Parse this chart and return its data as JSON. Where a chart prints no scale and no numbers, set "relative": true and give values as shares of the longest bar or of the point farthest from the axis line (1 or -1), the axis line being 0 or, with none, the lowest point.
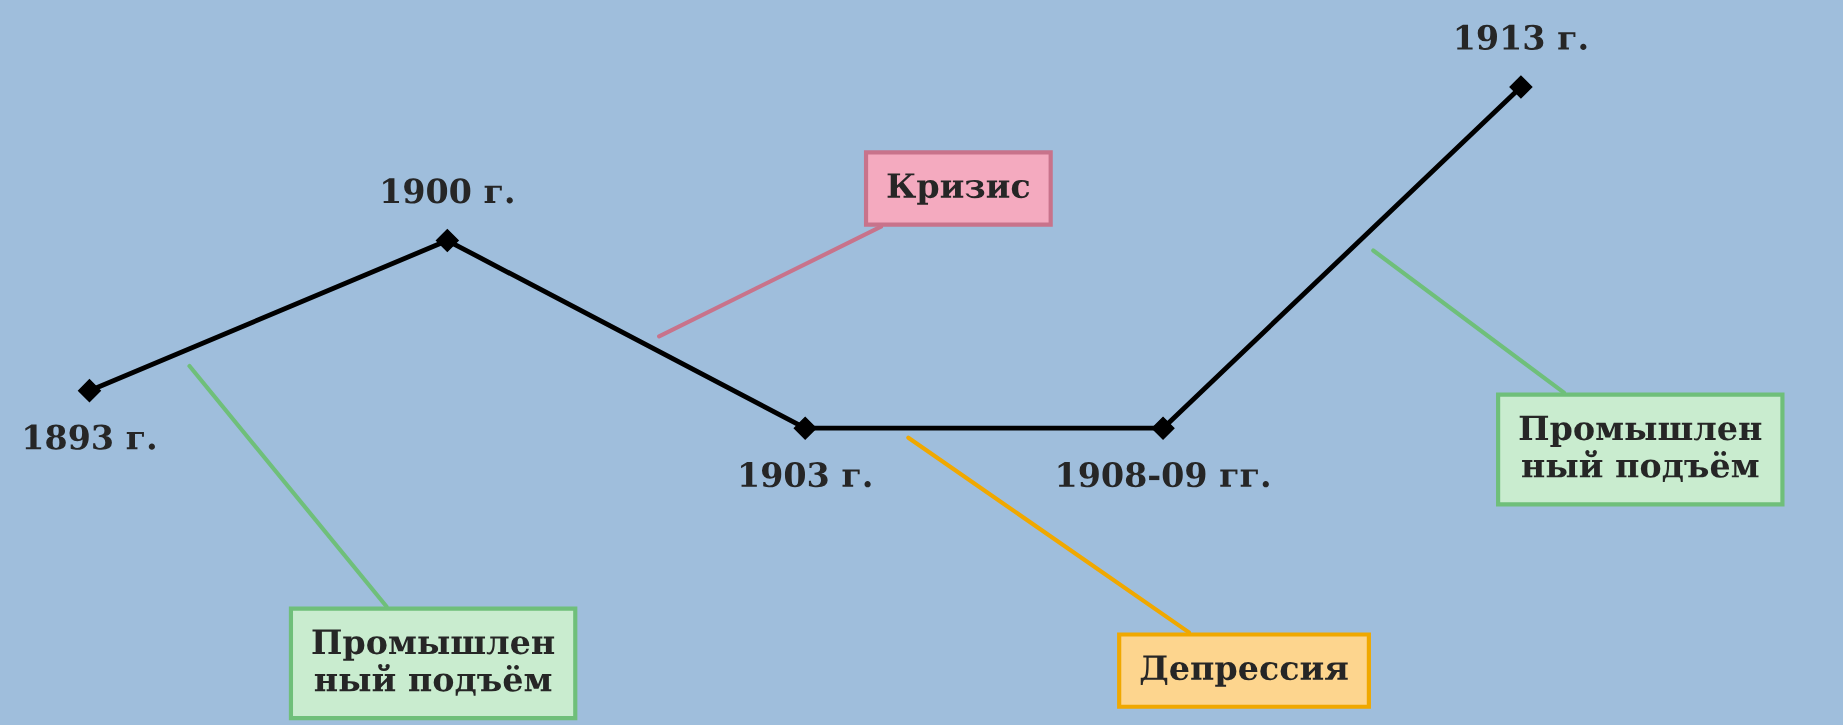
{
  "chart_data": {
    "type": "line",
    "relative": true,
    "marker": "diamond",
    "line_style": "solid",
    "categories": [
      "1893 г.",
      "1900 г.",
      "1903 г.",
      "1908-09 гг.",
      "1913 г."
    ],
    "series": [
      {
        "color": "#000000",
        "values": [
          0.11,
          0.55,
          0,
          0,
          1
        ]
      }
    ],
    "annotations": [
      "Кризис",
      "Депрессия",
      "Промышлен\nный подъём",
      "Промышлен\nный подъём"
    ]
  }
}
